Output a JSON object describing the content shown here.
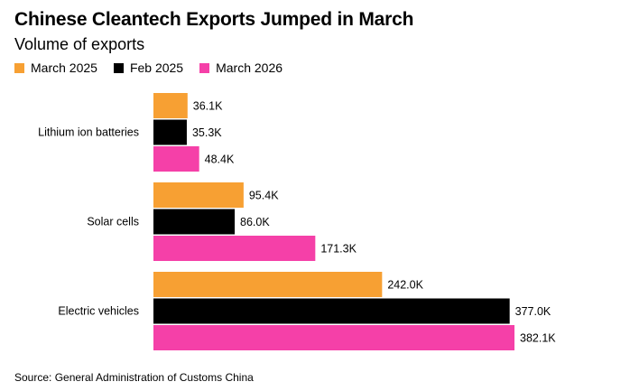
{
  "title": "Chinese Cleantech Exports Jumped in March",
  "subtitle": "Volume of exports",
  "source": "Source: General Administration of Customs China",
  "chart_data": {
    "type": "bar",
    "orientation": "horizontal",
    "title": "Chinese Cleantech Exports Jumped in March",
    "subtitle": "Volume of exports",
    "categories": [
      "Lithium ion batteries",
      "Solar cells",
      "Electric vehicles"
    ],
    "series": [
      {
        "name": "March 2025",
        "color": "#f7a033",
        "values": [
          36.1,
          95.4,
          242.0
        ],
        "labels": [
          "36.1K",
          "95.4K",
          "242.0K"
        ]
      },
      {
        "name": "Feb 2025",
        "color": "#000000",
        "values": [
          35.3,
          86.0,
          377.0
        ],
        "labels": [
          "35.3K",
          "86.0K",
          "377.0K"
        ]
      },
      {
        "name": "March 2026",
        "color": "#f540a8",
        "values": [
          48.4,
          171.3,
          382.1
        ],
        "labels": [
          "48.4K",
          "171.3K",
          "382.1K"
        ]
      }
    ],
    "unit": "K",
    "xlim": [
      0,
      382.1
    ],
    "legend_position": "top-left",
    "grid": false
  }
}
